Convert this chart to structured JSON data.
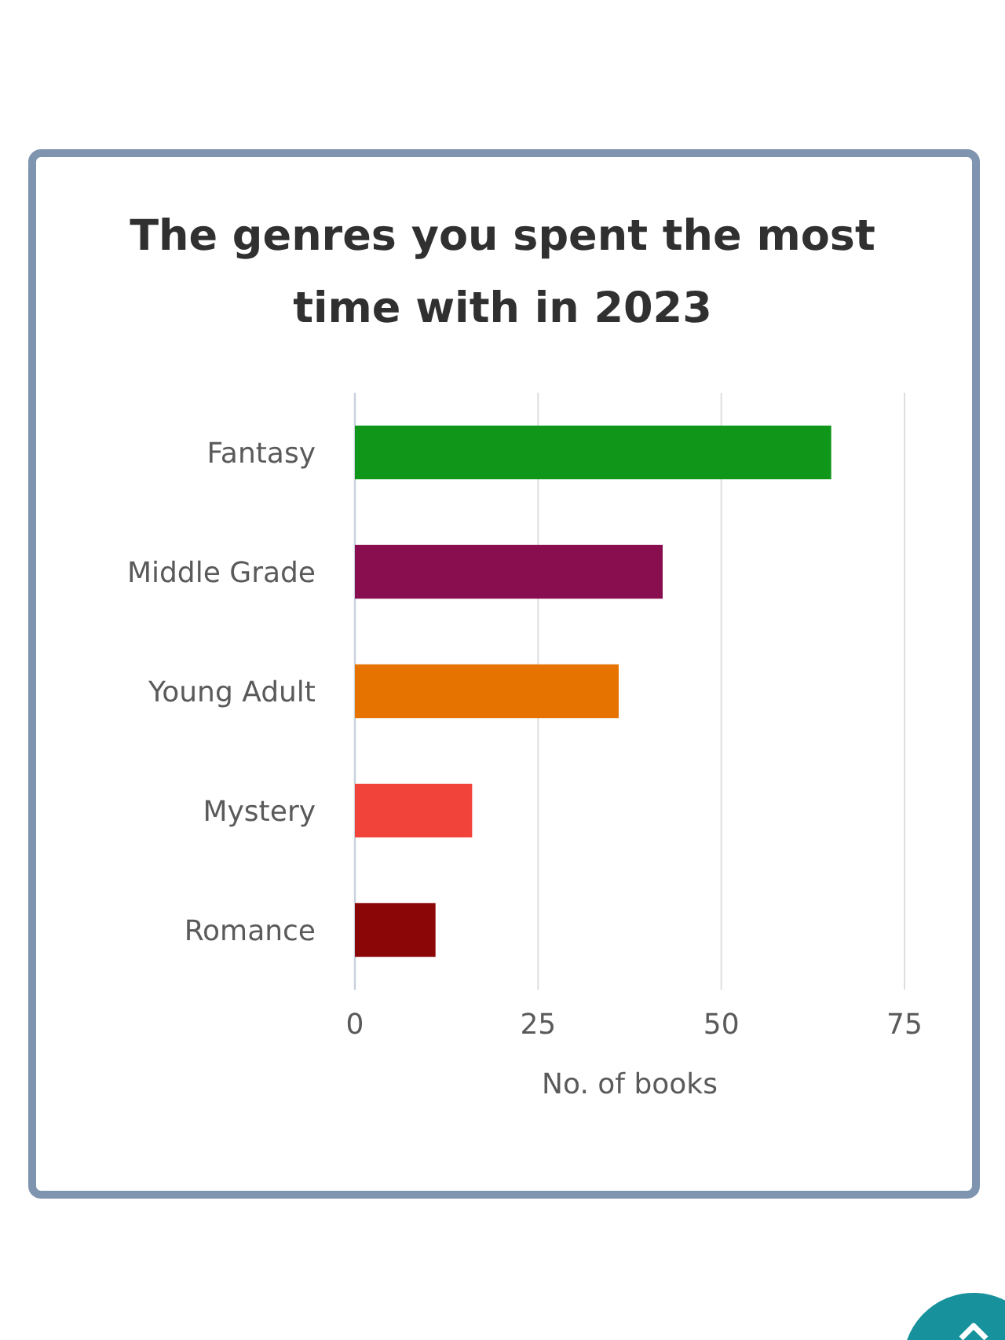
{
  "chart_data": {
    "type": "bar",
    "orientation": "horizontal",
    "title": "The genres you spent the most time with in 2023",
    "xlabel": "No. of books",
    "categories": [
      "Fantasy",
      "Middle Grade",
      "Young Adult",
      "Mystery",
      "Romance"
    ],
    "values": [
      65,
      42,
      36,
      16,
      11
    ],
    "colors": [
      "#109618",
      "#880e4f",
      "#e67300",
      "#f2433a",
      "#8b0707"
    ],
    "xlim": [
      0,
      75
    ],
    "xticks": [
      0,
      25,
      50,
      75
    ],
    "grid": "x"
  }
}
